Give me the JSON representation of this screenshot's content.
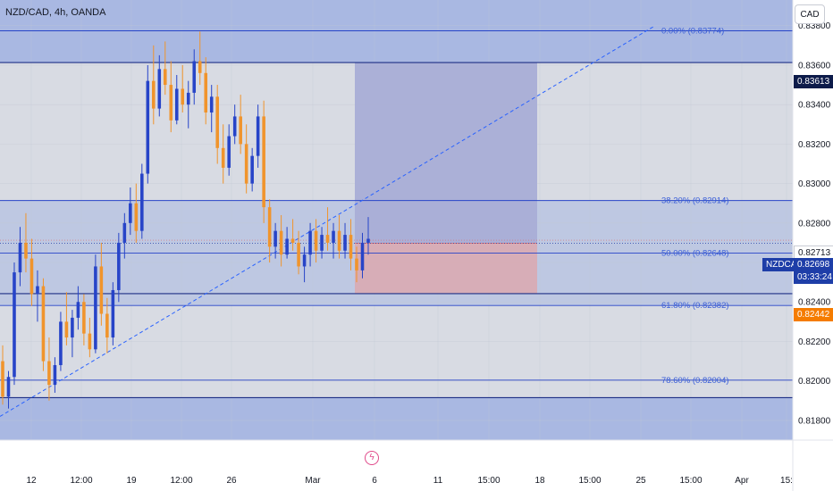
{
  "header": {
    "symbol_title": "NZD/CAD, 4h, OANDA",
    "currency_button": "CAD"
  },
  "colors": {
    "up": "#2744c8",
    "down": "#f0942c",
    "fib_line": "#2744c8",
    "fib_text": "#3a5ed8",
    "trendline": "#2962ff",
    "zone_fill": "#a9b8e2",
    "profit_zone": "#a9aed6",
    "loss_zone": "#d8acb4",
    "tag_blue": "#1e3ea8",
    "tag_orange": "#f57c00",
    "tag_dark": "#0d1b4a"
  },
  "price_tags": {
    "top_line": "0.83613",
    "current_high": "0.82713",
    "symbol": "NZDCAD",
    "last_price": "0.82698",
    "countdown": "03:33:24",
    "stop_line": "0.82442"
  },
  "events_icon": "lightning-icon",
  "chart_data": {
    "type": "candlestick",
    "title": "NZD/CAD, 4h, OANDA",
    "y_axis": {
      "range": [
        0.817,
        0.8393
      ],
      "ticks": [
        "0.83800",
        "0.83600",
        "0.83400",
        "0.83200",
        "0.83000",
        "0.82800",
        "0.82600",
        "0.82400",
        "0.82200",
        "0.82000",
        "0.81800"
      ]
    },
    "x_axis": {
      "ticks": [
        "12",
        "12:00",
        "19",
        "12:00",
        "26",
        "Mar",
        "6",
        "11",
        "15:00",
        "18",
        "15:00",
        "25",
        "15:00",
        "Apr",
        "15:"
      ]
    },
    "fib_levels": [
      {
        "label": "0.00% (0.83774)",
        "price": 0.83774
      },
      {
        "label": "38.20% (0.82914)",
        "price": 0.82914
      },
      {
        "label": "50.00% (0.82648)",
        "price": 0.82648
      },
      {
        "label": "61.80% (0.82382)",
        "price": 0.82382
      },
      {
        "label": "78.60% (0.82004)",
        "price": 0.82004
      }
    ],
    "horizontal_levels": [
      0.83613,
      0.82442,
      0.81915
    ],
    "trendline": {
      "from_price": 0.8182,
      "to_price": 0.838
    },
    "position": {
      "entry": 0.82698,
      "target": 0.83613,
      "stop": 0.82442
    },
    "candles": [
      {
        "o": 0.821,
        "h": 0.8218,
        "l": 0.8188,
        "c": 0.8192
      },
      {
        "o": 0.8192,
        "h": 0.8205,
        "l": 0.8186,
        "c": 0.8202
      },
      {
        "o": 0.8202,
        "h": 0.826,
        "l": 0.8198,
        "c": 0.8255
      },
      {
        "o": 0.8255,
        "h": 0.8278,
        "l": 0.8248,
        "c": 0.827
      },
      {
        "o": 0.827,
        "h": 0.8285,
        "l": 0.8255,
        "c": 0.8262
      },
      {
        "o": 0.8262,
        "h": 0.8272,
        "l": 0.8238,
        "c": 0.8244
      },
      {
        "o": 0.8244,
        "h": 0.8256,
        "l": 0.823,
        "c": 0.8248
      },
      {
        "o": 0.8248,
        "h": 0.8252,
        "l": 0.8205,
        "c": 0.821
      },
      {
        "o": 0.821,
        "h": 0.8222,
        "l": 0.819,
        "c": 0.8198
      },
      {
        "o": 0.8198,
        "h": 0.8212,
        "l": 0.8194,
        "c": 0.8208
      },
      {
        "o": 0.8208,
        "h": 0.8235,
        "l": 0.8205,
        "c": 0.823
      },
      {
        "o": 0.823,
        "h": 0.8245,
        "l": 0.8218,
        "c": 0.8222
      },
      {
        "o": 0.8222,
        "h": 0.8236,
        "l": 0.8212,
        "c": 0.8232
      },
      {
        "o": 0.8232,
        "h": 0.8248,
        "l": 0.8226,
        "c": 0.824
      },
      {
        "o": 0.824,
        "h": 0.8244,
        "l": 0.8218,
        "c": 0.8224
      },
      {
        "o": 0.8224,
        "h": 0.8232,
        "l": 0.8212,
        "c": 0.8216
      },
      {
        "o": 0.8216,
        "h": 0.8264,
        "l": 0.8214,
        "c": 0.8258
      },
      {
        "o": 0.8258,
        "h": 0.827,
        "l": 0.8228,
        "c": 0.8234
      },
      {
        "o": 0.8234,
        "h": 0.8242,
        "l": 0.8214,
        "c": 0.8222
      },
      {
        "o": 0.8222,
        "h": 0.825,
        "l": 0.8218,
        "c": 0.8246
      },
      {
        "o": 0.8246,
        "h": 0.8275,
        "l": 0.824,
        "c": 0.827
      },
      {
        "o": 0.827,
        "h": 0.8285,
        "l": 0.8262,
        "c": 0.828
      },
      {
        "o": 0.828,
        "h": 0.8298,
        "l": 0.8274,
        "c": 0.829
      },
      {
        "o": 0.829,
        "h": 0.83,
        "l": 0.827,
        "c": 0.8276
      },
      {
        "o": 0.8276,
        "h": 0.831,
        "l": 0.8272,
        "c": 0.8305
      },
      {
        "o": 0.8305,
        "h": 0.836,
        "l": 0.83,
        "c": 0.8352
      },
      {
        "o": 0.8352,
        "h": 0.837,
        "l": 0.833,
        "c": 0.8338
      },
      {
        "o": 0.8338,
        "h": 0.8365,
        "l": 0.8334,
        "c": 0.8358
      },
      {
        "o": 0.8358,
        "h": 0.8372,
        "l": 0.8345,
        "c": 0.835
      },
      {
        "o": 0.835,
        "h": 0.8362,
        "l": 0.8326,
        "c": 0.8332
      },
      {
        "o": 0.8332,
        "h": 0.8355,
        "l": 0.833,
        "c": 0.8348
      },
      {
        "o": 0.8348,
        "h": 0.836,
        "l": 0.8336,
        "c": 0.834
      },
      {
        "o": 0.834,
        "h": 0.8352,
        "l": 0.8328,
        "c": 0.8346
      },
      {
        "o": 0.8346,
        "h": 0.8368,
        "l": 0.834,
        "c": 0.8362
      },
      {
        "o": 0.8362,
        "h": 0.8377,
        "l": 0.835,
        "c": 0.8356
      },
      {
        "o": 0.8356,
        "h": 0.8364,
        "l": 0.833,
        "c": 0.8336
      },
      {
        "o": 0.8336,
        "h": 0.835,
        "l": 0.8326,
        "c": 0.8344
      },
      {
        "o": 0.8344,
        "h": 0.835,
        "l": 0.831,
        "c": 0.8318
      },
      {
        "o": 0.8318,
        "h": 0.833,
        "l": 0.83,
        "c": 0.8308
      },
      {
        "o": 0.8308,
        "h": 0.833,
        "l": 0.8304,
        "c": 0.8324
      },
      {
        "o": 0.8324,
        "h": 0.834,
        "l": 0.832,
        "c": 0.8334
      },
      {
        "o": 0.8334,
        "h": 0.8345,
        "l": 0.8315,
        "c": 0.832
      },
      {
        "o": 0.832,
        "h": 0.833,
        "l": 0.8295,
        "c": 0.83
      },
      {
        "o": 0.83,
        "h": 0.8318,
        "l": 0.8296,
        "c": 0.8314
      },
      {
        "o": 0.8314,
        "h": 0.834,
        "l": 0.8308,
        "c": 0.8334
      },
      {
        "o": 0.8334,
        "h": 0.8342,
        "l": 0.828,
        "c": 0.8288
      },
      {
        "o": 0.8288,
        "h": 0.8292,
        "l": 0.826,
        "c": 0.8268
      },
      {
        "o": 0.8268,
        "h": 0.828,
        "l": 0.8262,
        "c": 0.8276
      },
      {
        "o": 0.8276,
        "h": 0.8284,
        "l": 0.8258,
        "c": 0.8264
      },
      {
        "o": 0.8264,
        "h": 0.8278,
        "l": 0.8262,
        "c": 0.8272
      },
      {
        "o": 0.8272,
        "h": 0.8282,
        "l": 0.8266,
        "c": 0.827
      },
      {
        "o": 0.827,
        "h": 0.8276,
        "l": 0.8254,
        "c": 0.8258
      },
      {
        "o": 0.8258,
        "h": 0.8268,
        "l": 0.825,
        "c": 0.8264
      },
      {
        "o": 0.8264,
        "h": 0.828,
        "l": 0.8258,
        "c": 0.8276
      },
      {
        "o": 0.8276,
        "h": 0.8282,
        "l": 0.826,
        "c": 0.8266
      },
      {
        "o": 0.8266,
        "h": 0.8278,
        "l": 0.8262,
        "c": 0.8274
      },
      {
        "o": 0.8274,
        "h": 0.8288,
        "l": 0.8266,
        "c": 0.827
      },
      {
        "o": 0.827,
        "h": 0.828,
        "l": 0.8262,
        "c": 0.8276
      },
      {
        "o": 0.8276,
        "h": 0.8284,
        "l": 0.8262,
        "c": 0.8266
      },
      {
        "o": 0.8266,
        "h": 0.828,
        "l": 0.8262,
        "c": 0.8274
      },
      {
        "o": 0.8274,
        "h": 0.8282,
        "l": 0.8256,
        "c": 0.8262
      },
      {
        "o": 0.8262,
        "h": 0.8268,
        "l": 0.825,
        "c": 0.8256
      },
      {
        "o": 0.8256,
        "h": 0.8275,
        "l": 0.8252,
        "c": 0.827
      },
      {
        "o": 0.827,
        "h": 0.8283,
        "l": 0.8264,
        "c": 0.8272
      }
    ]
  }
}
